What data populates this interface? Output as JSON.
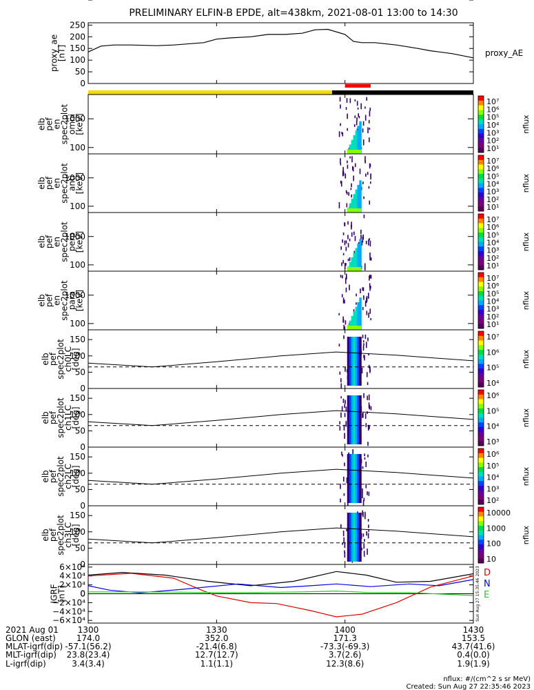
{
  "title": "PRELIMINARY ELFIN-B EPDE, alt=438km, 2021-08-01 13:00 to 14:30",
  "chart_data": {
    "type": "line",
    "time_ticks": [
      "1300",
      "1330",
      "1400",
      "1430"
    ],
    "time_range_min": [
      0,
      90
    ],
    "science_zone_bar": {
      "yellow_end_min": 57,
      "black_start_min": 57
    },
    "red_marker_min": [
      60,
      66
    ],
    "panels": [
      {
        "id": "proxy_ae",
        "ylabel": [
          "proxy_ae",
          "[nT]"
        ],
        "right_label": "proxy_AE",
        "yticks": [
          "250",
          "200",
          "150",
          "100",
          "50",
          "0"
        ],
        "ylim": [
          0,
          260
        ],
        "series": [
          {
            "x": [
              0,
              3,
              6,
              10,
              16,
              20,
              27,
              30,
              33,
              38,
              42,
              46,
              50,
              53,
              56,
              60,
              62,
              64,
              67,
              72,
              77,
              80,
              85,
              90
            ],
            "values": [
              135,
              160,
              165,
              165,
              162,
              165,
              175,
              190,
              195,
              200,
              210,
              210,
              215,
              230,
              232,
              210,
              180,
              175,
              175,
              165,
              150,
              140,
              128,
              110
            ]
          }
        ]
      },
      {
        "id": "omni",
        "ylabel": [
          "elb",
          "pef",
          "en",
          "spec2plot",
          "omni",
          "[keV]"
        ],
        "yticks": [
          "1000",
          "100"
        ],
        "ylog": true,
        "ylim": [
          60,
          7000
        ],
        "colorbar": {
          "label": "nflux",
          "ticks": [
            "10⁷",
            "10⁶",
            "10⁵",
            "10⁴",
            "10³",
            "10²",
            "10¹"
          ]
        }
      },
      {
        "id": "anti",
        "ylabel": [
          "elb",
          "pef",
          "en",
          "spec2plot",
          "anti",
          "[keV]"
        ],
        "yticks": [
          "1000",
          "100"
        ],
        "ylog": true,
        "ylim": [
          60,
          7000
        ],
        "colorbar": {
          "label": "nflux",
          "ticks": [
            "10⁷",
            "10⁶",
            "10⁵",
            "10⁴",
            "10³",
            "10²",
            "10¹"
          ]
        }
      },
      {
        "id": "perp",
        "ylabel": [
          "elb",
          "pef",
          "en",
          "spec2plot",
          "perp",
          "[keV]"
        ],
        "yticks": [
          "1000",
          "100"
        ],
        "ylog": true,
        "ylim": [
          60,
          7000
        ],
        "colorbar": {
          "label": "nflux",
          "ticks": [
            "10⁷",
            "10⁶",
            "10⁵",
            "10⁴",
            "10³",
            "10²",
            "10¹"
          ]
        }
      },
      {
        "id": "para",
        "ylabel": [
          "elb",
          "pef",
          "en",
          "spec2plot",
          "para",
          "[keV]"
        ],
        "yticks": [
          "1000",
          "100"
        ],
        "ylog": true,
        "ylim": [
          60,
          7000
        ],
        "colorbar": {
          "label": "nflux",
          "ticks": [
            "10⁷",
            "10⁶",
            "10⁵",
            "10⁴",
            "10³",
            "10²",
            "10¹"
          ]
        }
      },
      {
        "id": "ch0LC",
        "ylabel": [
          "elb",
          "pef",
          "spec2plot",
          "ch0LC",
          "[deg]"
        ],
        "yticks": [
          "150",
          "100",
          "50",
          "0"
        ],
        "ylim": [
          0,
          180
        ],
        "colorbar": {
          "label": "nflux",
          "ticks": [
            "10⁷",
            "10⁶",
            "10⁵",
            "10⁴"
          ]
        },
        "lines": {
          "solid": {
            "x": [
              0,
              15,
              30,
              45,
              58,
              72,
              90
            ],
            "values": [
              78,
              66,
              82,
              100,
              112,
              102,
              85
            ]
          },
          "dashed": {
            "x": [
              0,
              15,
              30,
              45,
              58,
              72,
              90
            ],
            "values": [
              66,
              66,
              66,
              66,
              66,
              66,
              66
            ]
          }
        }
      },
      {
        "id": "ch1LC",
        "ylabel": [
          "elb",
          "pef",
          "spec2plot",
          "ch1LC",
          "[deg]"
        ],
        "yticks": [
          "150",
          "100",
          "50",
          "0"
        ],
        "ylim": [
          0,
          180
        ],
        "colorbar": {
          "label": "nflux",
          "ticks": [
            "10⁶",
            "10⁵",
            "10⁴",
            "10³"
          ]
        },
        "lines": {
          "solid": {
            "x": [
              0,
              15,
              30,
              45,
              58,
              72,
              90
            ],
            "values": [
              78,
              66,
              82,
              100,
              112,
              102,
              85
            ]
          },
          "dashed": {
            "x": [
              0,
              15,
              30,
              45,
              58,
              72,
              90
            ],
            "values": [
              66,
              66,
              66,
              66,
              66,
              66,
              66
            ]
          }
        }
      },
      {
        "id": "ch2LC",
        "ylabel": [
          "elb",
          "pef",
          "spec2plot",
          "ch2LC",
          "[deg]"
        ],
        "yticks": [
          "150",
          "100",
          "50",
          "0"
        ],
        "ylim": [
          0,
          180
        ],
        "colorbar": {
          "label": "nflux",
          "ticks": [
            "10⁶",
            "10⁵",
            "10⁴",
            "10³",
            "10²"
          ]
        },
        "lines": {
          "solid": {
            "x": [
              0,
              15,
              30,
              45,
              58,
              72,
              90
            ],
            "values": [
              78,
              66,
              82,
              100,
              112,
              102,
              85
            ]
          },
          "dashed": {
            "x": [
              0,
              15,
              30,
              45,
              58,
              72,
              90
            ],
            "values": [
              66,
              66,
              66,
              66,
              66,
              66,
              66
            ]
          }
        }
      },
      {
        "id": "ch3LC",
        "ylabel": [
          "elb",
          "pef",
          "spec2plot",
          "ch3LC",
          "[deg]"
        ],
        "yticks": [
          "150",
          "100",
          "50",
          "0"
        ],
        "ylim": [
          0,
          180
        ],
        "colorbar": {
          "label": "nflux",
          "ticks": [
            "10000",
            "1000",
            "100",
            "10"
          ]
        },
        "lines": {
          "solid": {
            "x": [
              0,
              15,
              30,
              45,
              58,
              72,
              90
            ],
            "values": [
              78,
              66,
              82,
              100,
              112,
              102,
              85
            ]
          },
          "dashed": {
            "x": [
              0,
              15,
              30,
              45,
              58,
              72,
              90
            ],
            "values": [
              66,
              66,
              66,
              66,
              66,
              66,
              66
            ]
          }
        }
      },
      {
        "id": "igrf",
        "ylabel": [
          "IGRF",
          "[nT]"
        ],
        "yticks": [
          "6×10⁴",
          "4×10⁴",
          "2×10⁴",
          "0",
          "−2×10⁴",
          "−4×10⁴",
          "−6×10⁴"
        ],
        "ylim": [
          -66000,
          66000
        ],
        "legend": [
          {
            "name": "D",
            "color": "#dd0000"
          },
          {
            "name": "N",
            "color": "#0000ee"
          },
          {
            "name": "E",
            "color": "#22cc22"
          }
        ],
        "series": [
          {
            "name": "black",
            "color": "#000000",
            "x": [
              0,
              8,
              18,
              28,
              38,
              48,
              58,
              65,
              72,
              80,
              90
            ],
            "values": [
              42000,
              48000,
              42000,
              28000,
              18000,
              28000,
              50000,
              42000,
              26000,
              28000,
              45000
            ]
          },
          {
            "name": "D",
            "color": "#dd0000",
            "x": [
              0,
              10,
              20,
              26,
              30,
              38,
              44,
              52,
              58,
              64,
              72,
              80,
              90
            ],
            "values": [
              40000,
              46000,
              35000,
              10000,
              -5000,
              -20000,
              -22000,
              -38000,
              -52000,
              -46000,
              -20000,
              15000,
              40000
            ]
          },
          {
            "name": "N",
            "color": "#0000ee",
            "x": [
              0,
              5,
              12,
              22,
              35,
              45,
              52,
              58,
              66,
              75,
              82,
              90
            ],
            "values": [
              18000,
              8000,
              2000,
              10000,
              22000,
              14000,
              18000,
              22000,
              16000,
              22000,
              18000,
              32000
            ]
          },
          {
            "name": "E",
            "color": "#22cc22",
            "x": [
              0,
              10,
              20,
              30,
              40,
              50,
              58,
              65,
              75,
              90
            ],
            "values": [
              4000,
              4000,
              3500,
              2500,
              3000,
              4000,
              6000,
              3000,
              2500,
              -4000
            ]
          }
        ]
      }
    ]
  },
  "ephemeris": {
    "rows": [
      {
        "label": "2021 Aug 01",
        "values": [
          "1300",
          "1330",
          "1400",
          "1430"
        ]
      },
      {
        "label": "GLON (east)",
        "values": [
          "174.0",
          "352.0",
          "171.3",
          "153.5"
        ]
      },
      {
        "label": "MLAT-igrf(dip)",
        "values": [
          "-57.1(56.2)",
          "-21.4(6.8)",
          "-73.3(-69.3)",
          "43.7(41.6)"
        ]
      },
      {
        "label": "MLT-igrf(dip)",
        "values": [
          "23.8(23.4)",
          "12.7(12.7)",
          "3.7(2.6)",
          "0.4(0.0)"
        ]
      },
      {
        "label": "L-igrf(dip)",
        "values": [
          "3.4(3.4)",
          "1.1(1.1)",
          "12.3(8.6)",
          "1.9(1.9)"
        ]
      }
    ]
  },
  "footer": {
    "units": "nflux: #/(cm^2 s sr MeV)",
    "created": "Created: Sun Aug 27 22:35:46 2023",
    "side_stamp": "Sun Aug 27 15:35:46 2023"
  }
}
